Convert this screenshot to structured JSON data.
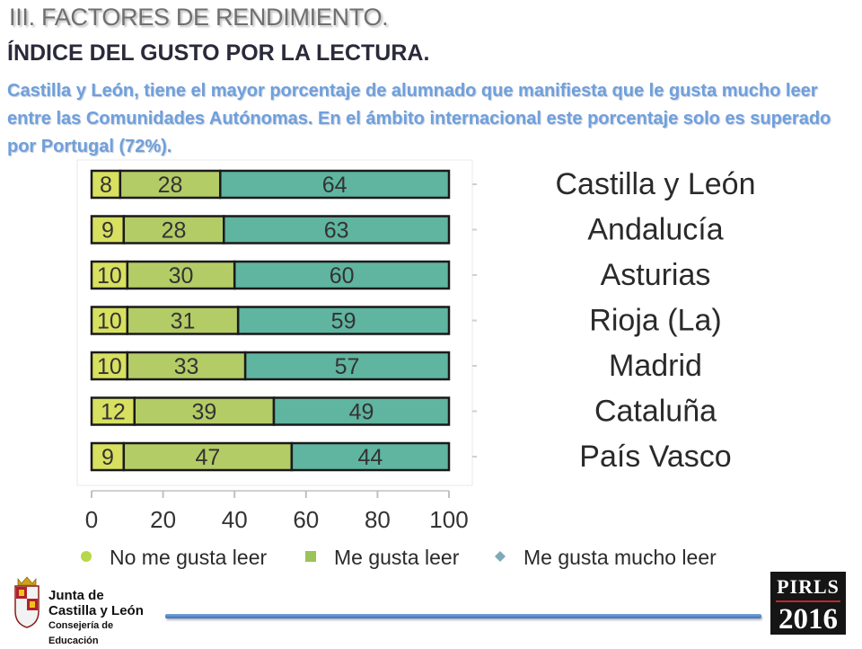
{
  "header": {
    "section": "III. FACTORES DE RENDIMIENTO.",
    "title": "ÍNDICE DEL GUSTO POR LA LECTURA.",
    "intro": "Castilla y León, tiene el mayor porcentaje de alumnado que manifiesta que le gusta mucho leer entre las Comunidades Autónomas.  En el ámbito internacional este porcentaje solo es superado por Portugal (72%)."
  },
  "chart_data": {
    "type": "bar",
    "stacked": true,
    "orientation": "horizontal",
    "categories": [
      "Castilla y León",
      "Andalucía",
      "Asturias",
      "Rioja (La)",
      "Madrid",
      "Cataluña",
      "País Vasco"
    ],
    "series": [
      {
        "name": "No me gusta leer",
        "values": [
          8,
          9,
          10,
          10,
          10,
          12,
          9
        ],
        "color": "#d8e060"
      },
      {
        "name": "Me gusta leer",
        "values": [
          28,
          28,
          30,
          31,
          33,
          39,
          47
        ],
        "color": "#b4cc66"
      },
      {
        "name": "Me gusta mucho leer",
        "values": [
          64,
          63,
          60,
          59,
          57,
          49,
          44
        ],
        "color": "#5fb5a0"
      }
    ],
    "xticks": [
      "0",
      "20",
      "40",
      "60",
      "80",
      "100"
    ],
    "xlim": [
      0,
      100
    ],
    "legend_position": "bottom",
    "legend_markers": [
      "#b6d84a",
      "#9cc25a",
      "#7ea9b8"
    ]
  },
  "footer": {
    "logo_line1": "Junta de",
    "logo_line2": "Castilla y León",
    "logo_line3": "Consejería de Educación",
    "badge_top": "PIRLS",
    "badge_year": "2016"
  }
}
